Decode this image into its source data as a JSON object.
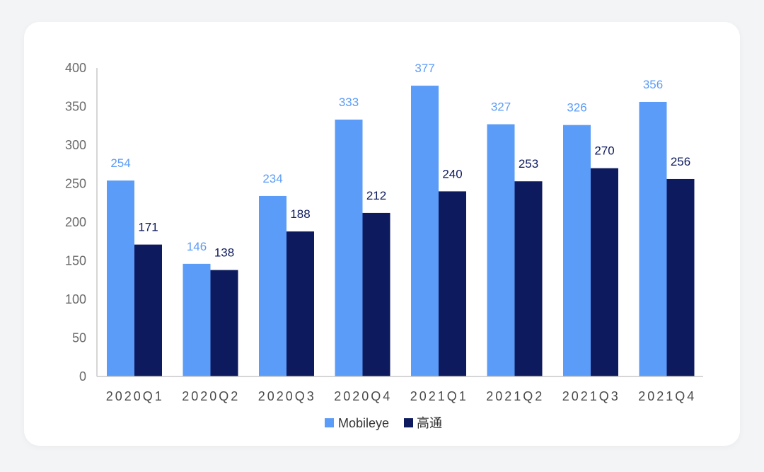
{
  "chart_data": {
    "type": "bar",
    "categories": [
      "2020Q1",
      "2020Q2",
      "2020Q3",
      "2020Q4",
      "2021Q1",
      "2021Q2",
      "2021Q3",
      "2021Q4"
    ],
    "series": [
      {
        "name": "Mobileye",
        "values": [
          254,
          146,
          234,
          333,
          377,
          327,
          326,
          356
        ],
        "color": "#5b9cf8",
        "label_color": "#5b9cf8"
      },
      {
        "name": "高通",
        "values": [
          171,
          138,
          188,
          212,
          240,
          253,
          270,
          256
        ],
        "color": "#0d1a5e",
        "label_color": "#0d1a5e"
      }
    ],
    "ylim": [
      0,
      400
    ],
    "yticks": [
      0,
      50,
      100,
      150,
      200,
      250,
      300,
      350,
      400
    ],
    "grid": false,
    "legend": "bottom-center",
    "axis_color": "#c8c8c8"
  }
}
